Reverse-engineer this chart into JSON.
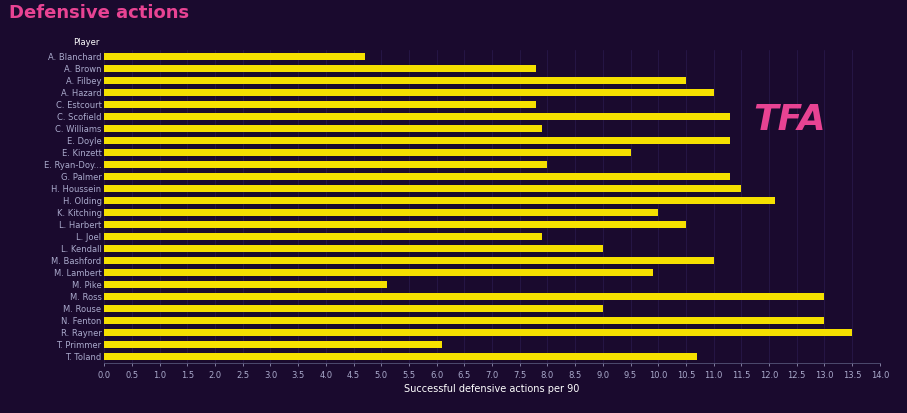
{
  "title": "Defensive actions",
  "xlabel": "Successful defensive actions per 90",
  "header_label": "Player",
  "background_color": "#1a0a2e",
  "bar_color": "#f5e000",
  "title_color": "#e84393",
  "label_color": "#ffffff",
  "axis_color": "#aaaacc",
  "tfa_color": "#e84393",
  "xlim": [
    0,
    14.0
  ],
  "xticks": [
    0.0,
    0.5,
    1.0,
    1.5,
    2.0,
    2.5,
    3.0,
    3.5,
    4.0,
    4.5,
    5.0,
    5.5,
    6.0,
    6.5,
    7.0,
    7.5,
    8.0,
    8.5,
    9.0,
    9.5,
    10.0,
    10.5,
    11.0,
    11.5,
    12.0,
    12.5,
    13.0,
    13.5,
    14.0
  ],
  "players": [
    "A. Blanchard",
    "A. Brown",
    "A. Filbey",
    "A. Hazard",
    "C. Estcourt",
    "C. Scofield",
    "C. Williams",
    "E. Doyle",
    "E. Kinzett",
    "E. Ryan-Doy...",
    "G. Palmer",
    "H. Houssein",
    "H. Olding",
    "K. Kitching",
    "L. Harbert",
    "L. Joel",
    "L. Kendall",
    "M. Bashford",
    "M. Lambert",
    "M. Pike",
    "M. Ross",
    "M. Rouse",
    "N. Fenton",
    "R. Rayner",
    "T. Primmer",
    "T. Toland"
  ],
  "values": [
    4.7,
    7.8,
    10.5,
    11.0,
    7.8,
    11.3,
    7.9,
    11.3,
    9.5,
    8.0,
    11.3,
    11.5,
    12.1,
    10.0,
    10.5,
    7.9,
    9.0,
    11.0,
    9.9,
    5.1,
    13.0,
    9.0,
    13.0,
    13.5,
    6.1,
    10.7
  ],
  "bar_height": 0.55,
  "label_fontsize": 6.0,
  "title_fontsize": 13,
  "xlabel_fontsize": 7.0,
  "xtick_fontsize": 6.0
}
